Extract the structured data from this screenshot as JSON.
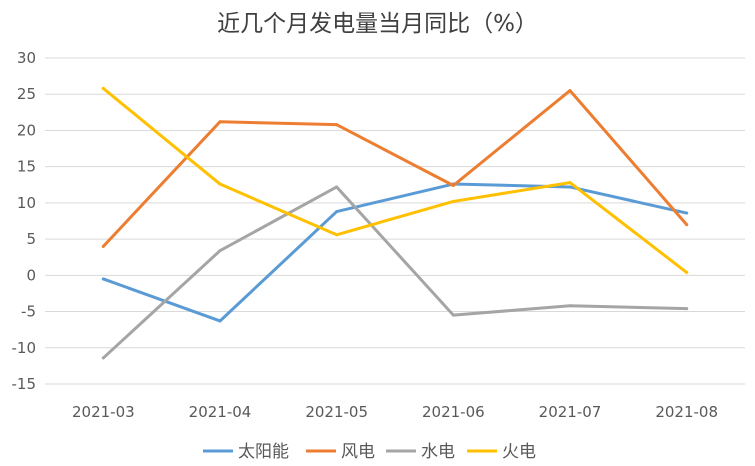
{
  "chart_data": {
    "type": "line",
    "title": "近几个月发电量当月同比（%）",
    "categories": [
      "2021-03",
      "2021-04",
      "2021-05",
      "2021-06",
      "2021-07",
      "2021-08"
    ],
    "ylim": [
      -15,
      30
    ],
    "yticks": [
      30,
      25,
      20,
      15,
      10,
      5,
      0,
      -5,
      -10,
      -15
    ],
    "grid": true,
    "legend_position": "bottom",
    "series": [
      {
        "name": "太阳能",
        "color": "#5B9BD5",
        "values": [
          -0.5,
          -6.3,
          8.8,
          12.6,
          12.2,
          8.6
        ]
      },
      {
        "name": "风电",
        "color": "#ED7D31",
        "values": [
          4.0,
          21.2,
          20.8,
          12.4,
          25.5,
          7.0
        ]
      },
      {
        "name": "水电",
        "color": "#A5A5A5",
        "values": [
          -11.4,
          3.4,
          12.2,
          -5.5,
          -4.2,
          -4.6
        ]
      },
      {
        "name": "火电",
        "color": "#FFC000",
        "values": [
          25.8,
          12.6,
          5.6,
          10.2,
          12.8,
          0.4
        ]
      }
    ]
  }
}
